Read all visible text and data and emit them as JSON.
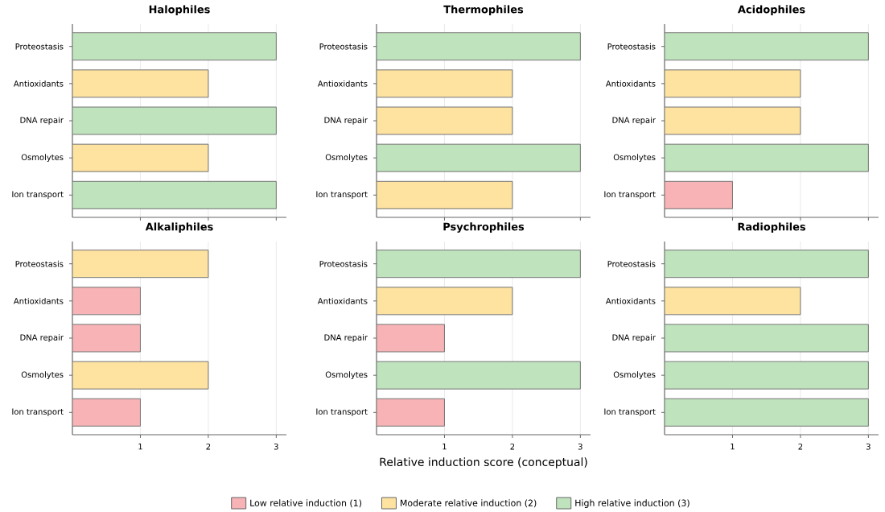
{
  "chart_data": [
    {
      "type": "bar",
      "orientation": "horizontal",
      "title": "Halophiles",
      "categories": [
        "Proteostasis",
        "Antioxidants",
        "DNA repair",
        "Osmolytes",
        "Ion transport"
      ],
      "series": [
        {
          "color": "#f7b3b5",
          "values": [
            null,
            null,
            null,
            null,
            null
          ]
        },
        {
          "color": "#fde2a0",
          "values": [
            null,
            2,
            null,
            2,
            null
          ]
        },
        {
          "color": "#bfe4bd",
          "values": [
            3,
            null,
            3,
            null,
            3
          ]
        }
      ],
      "xlim": [
        0,
        3.15
      ],
      "xticks": [
        {
          "value": 1,
          "label": null
        },
        {
          "value": 2,
          "label": null
        },
        {
          "value": 3,
          "label": null
        }
      ],
      "tick_labels": "y",
      "grid": "x"
    },
    {
      "type": "bar",
      "orientation": "horizontal",
      "title": "Thermophiles",
      "categories": [
        "Proteostasis",
        "Antioxidants",
        "DNA repair",
        "Osmolytes",
        "Ion transport"
      ],
      "series": [
        {
          "color": "#f7b3b5",
          "values": [
            null,
            null,
            null,
            null,
            null
          ]
        },
        {
          "color": "#fde2a0",
          "values": [
            null,
            2,
            2,
            null,
            2
          ]
        },
        {
          "color": "#bfe4bd",
          "values": [
            3,
            null,
            null,
            3,
            null
          ]
        }
      ],
      "xlim": [
        0,
        3.15
      ],
      "xticks": [
        {
          "value": 1,
          "label": null
        },
        {
          "value": 2,
          "label": null
        },
        {
          "value": 3,
          "label": null
        }
      ],
      "tick_labels": "y",
      "grid": "x"
    },
    {
      "type": "bar",
      "orientation": "horizontal",
      "title": "Acidophiles",
      "categories": [
        "Proteostasis",
        "Antioxidants",
        "DNA repair",
        "Osmolytes",
        "Ion transport"
      ],
      "series": [
        {
          "color": "#f7b3b5",
          "values": [
            null,
            null,
            null,
            null,
            1
          ]
        },
        {
          "color": "#fde2a0",
          "values": [
            null,
            2,
            2,
            null,
            null
          ]
        },
        {
          "color": "#bfe4bd",
          "values": [
            3,
            null,
            null,
            3,
            null
          ]
        }
      ],
      "xlim": [
        0,
        3.15
      ],
      "xticks": [
        {
          "value": 1,
          "label": null
        },
        {
          "value": 2,
          "label": null
        },
        {
          "value": 3,
          "label": null
        }
      ],
      "tick_labels": "y",
      "grid": "x"
    },
    {
      "type": "bar",
      "orientation": "horizontal",
      "title": "Alkaliphiles",
      "categories": [
        "Proteostasis",
        "Antioxidants",
        "DNA repair",
        "Osmolytes",
        "Ion transport"
      ],
      "series": [
        {
          "color": "#f7b3b5",
          "values": [
            null,
            1,
            1,
            null,
            1
          ]
        },
        {
          "color": "#fde2a0",
          "values": [
            2,
            null,
            null,
            2,
            null
          ]
        },
        {
          "color": "#bfe4bd",
          "values": [
            null,
            null,
            null,
            null,
            null
          ]
        }
      ],
      "xlim": [
        0,
        3.15
      ],
      "xticks": [
        1,
        2,
        3
      ],
      "grid": "x"
    },
    {
      "type": "bar",
      "orientation": "horizontal",
      "title": "Psychrophiles",
      "xlabel": "Relative induction score (conceptual)",
      "categories": [
        "Proteostasis",
        "Antioxidants",
        "DNA repair",
        "Osmolytes",
        "Ion transport"
      ],
      "series": [
        {
          "name": "Low relative induction (1)",
          "color": "#f7b3b5",
          "values": [
            null,
            null,
            1,
            null,
            1
          ]
        },
        {
          "name": "Moderate relative induction (2)",
          "color": "#fde2a0",
          "values": [
            null,
            2,
            null,
            null,
            null
          ]
        },
        {
          "name": "High relative induction (3)",
          "color": "#bfe4bd",
          "values": [
            3,
            null,
            null,
            3,
            null
          ]
        }
      ],
      "xlim": [
        0,
        3.15
      ],
      "xticks": [
        1,
        2,
        3
      ],
      "grid": "x",
      "legend": "bottom"
    },
    {
      "type": "bar",
      "orientation": "horizontal",
      "title": "Radiophiles",
      "categories": [
        "Proteostasis",
        "Antioxidants",
        "DNA repair",
        "Osmolytes",
        "Ion transport"
      ],
      "series": [
        {
          "color": "#f7b3b5",
          "values": [
            null,
            null,
            null,
            null,
            null
          ]
        },
        {
          "color": "#fde2a0",
          "values": [
            null,
            2,
            null,
            null,
            null
          ]
        },
        {
          "color": "#bfe4bd",
          "values": [
            3,
            null,
            3,
            3,
            3
          ]
        }
      ],
      "xlim": [
        0,
        3.15
      ],
      "xticks": [
        1,
        2,
        3
      ],
      "grid": "x"
    }
  ]
}
